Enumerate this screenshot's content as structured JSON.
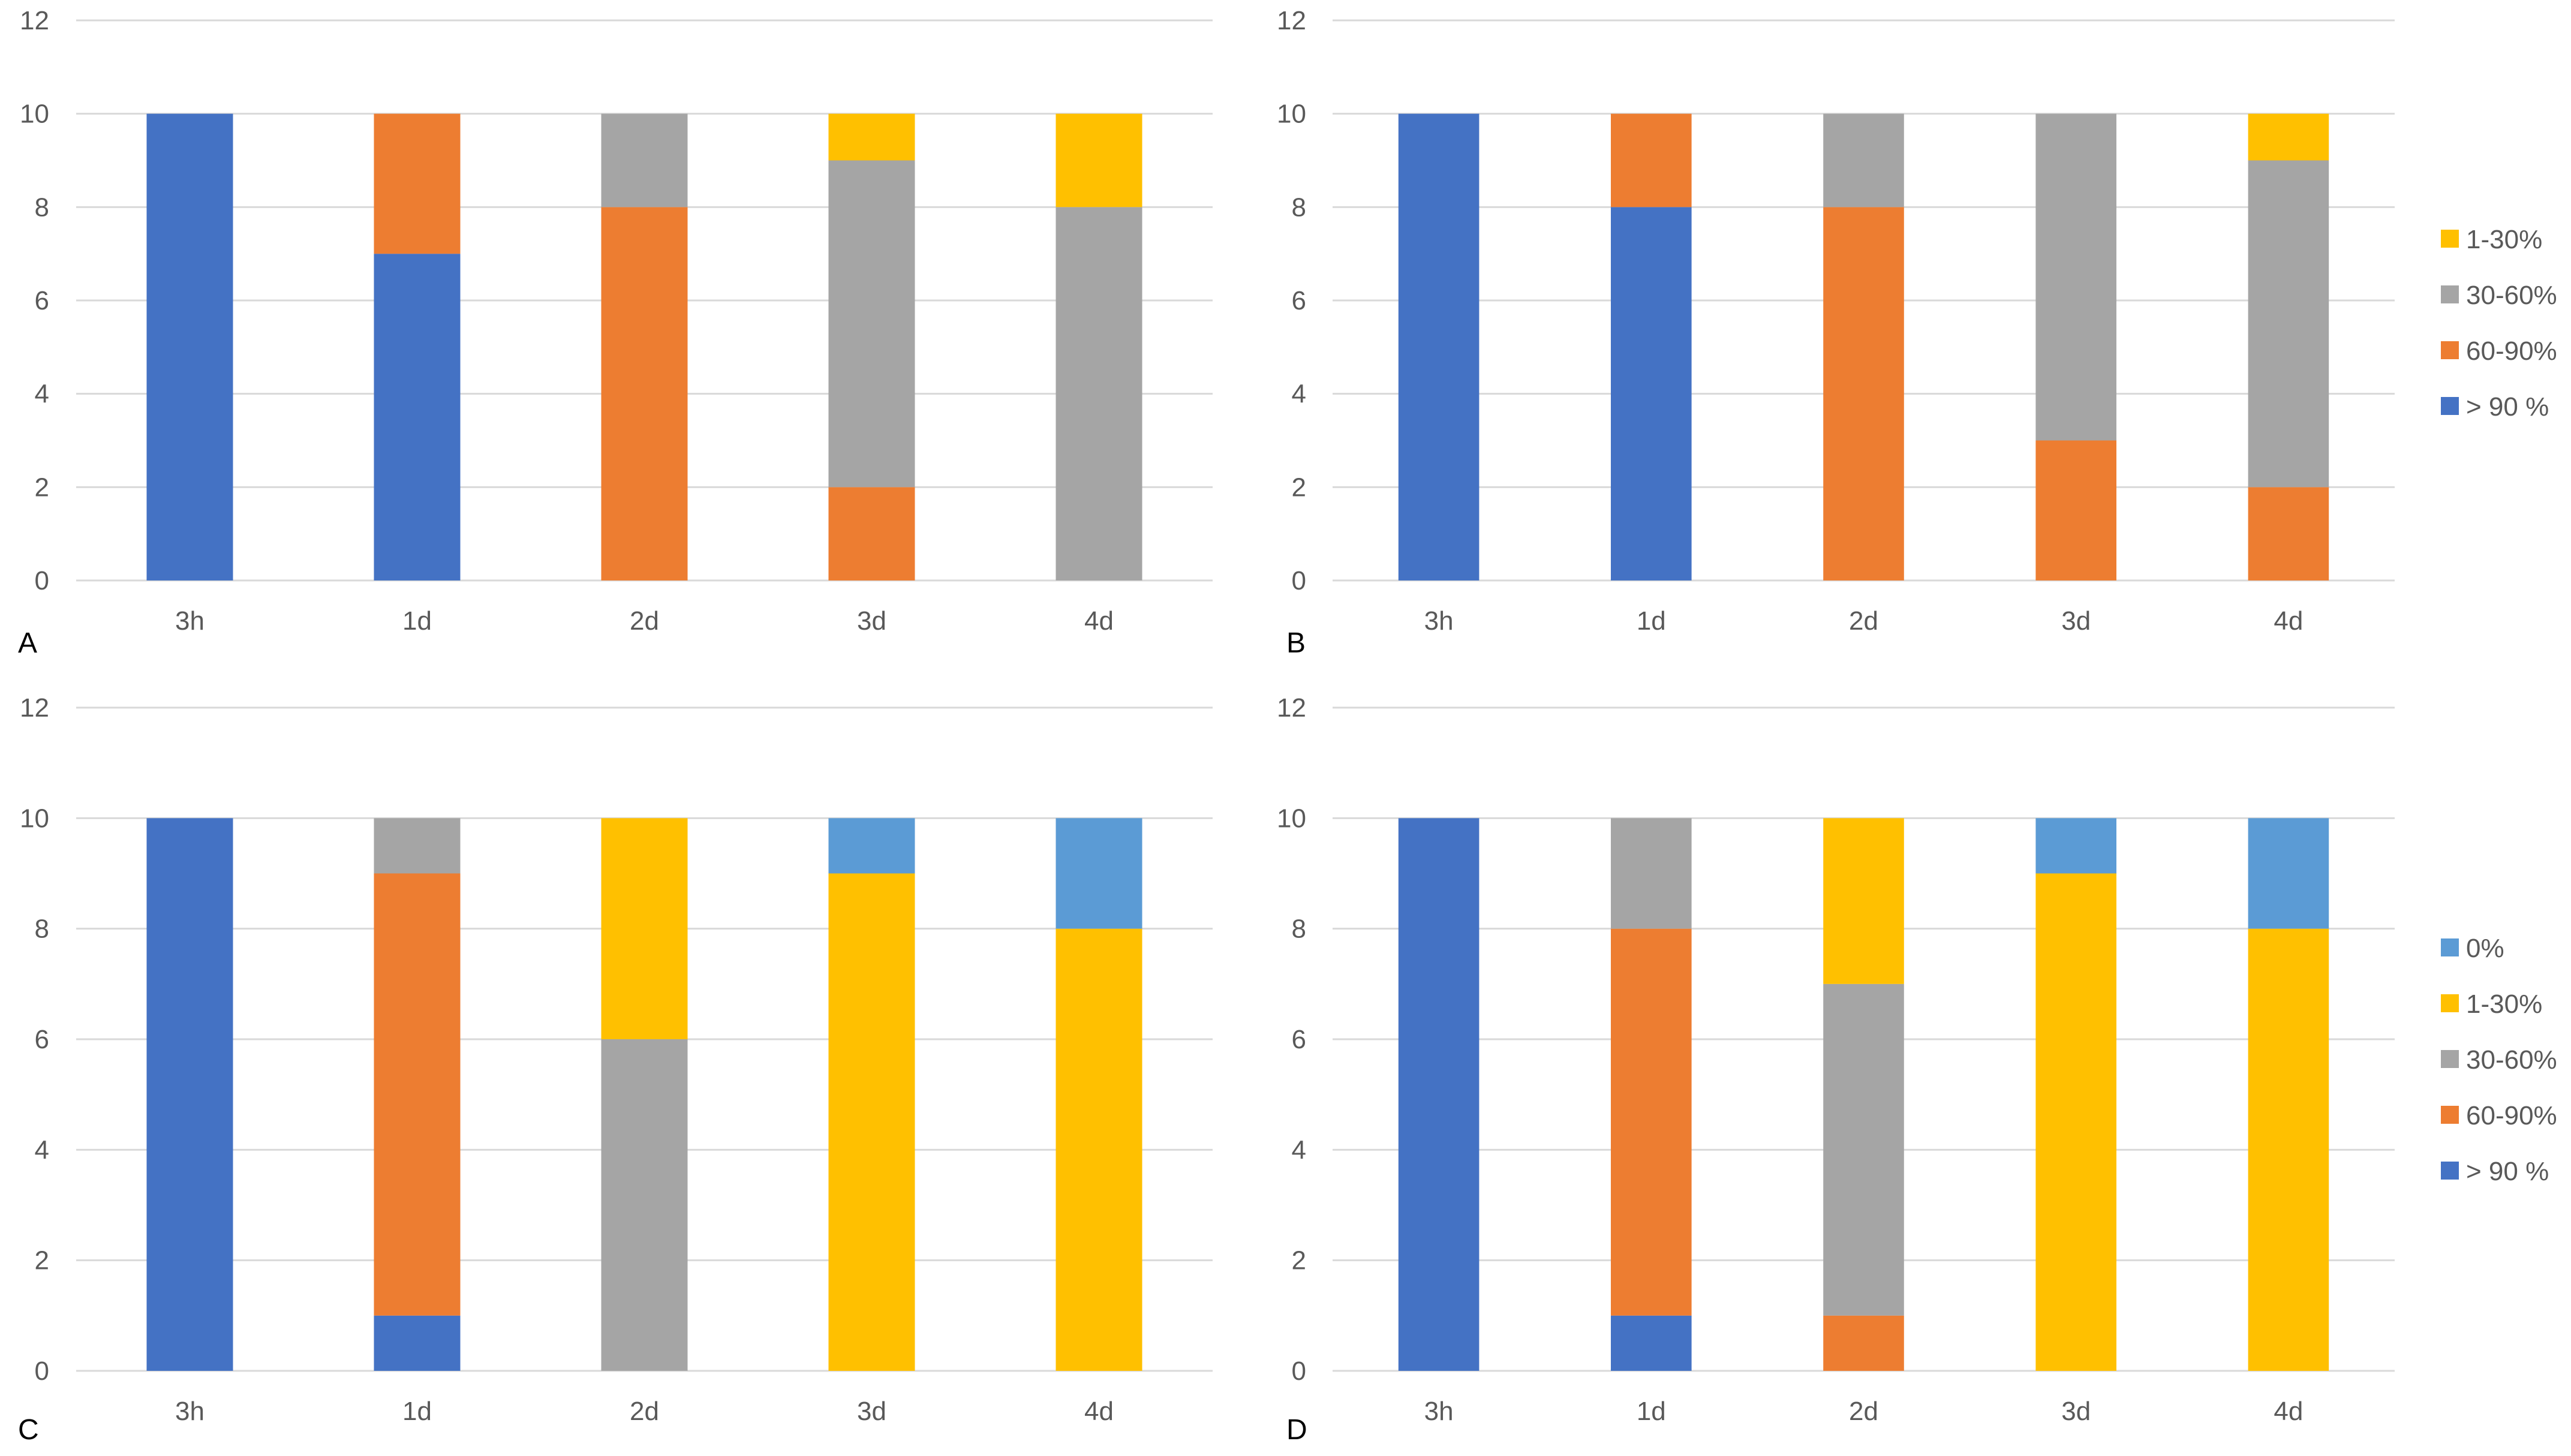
{
  "colors": {
    "0%": "#5B9BD5",
    "1-30%": "#FFC000",
    "30-60%": "#A5A5A5",
    "60-90%": "#ED7D31",
    "> 90 %": "#4472C4",
    "grid": "#D9D9D9",
    "text": "#595959"
  },
  "chart_data": [
    {
      "type": "bar",
      "stacked": true,
      "panel_label": "A",
      "categories": [
        "3h",
        "1d",
        "2d",
        "3d",
        "4d"
      ],
      "ylim": [
        0,
        12
      ],
      "yticks": [
        0,
        2,
        4,
        6,
        8,
        10,
        12
      ],
      "grid": true,
      "legend": null,
      "series": [
        {
          "name": "> 90 %",
          "values": [
            10,
            7,
            0,
            0,
            0
          ]
        },
        {
          "name": "60-90%",
          "values": [
            0,
            3,
            8,
            2,
            0
          ]
        },
        {
          "name": "30-60%",
          "values": [
            0,
            0,
            2,
            7,
            8
          ]
        },
        {
          "name": "1-30%",
          "values": [
            0,
            0,
            0,
            1,
            2
          ]
        }
      ]
    },
    {
      "type": "bar",
      "stacked": true,
      "panel_label": "B",
      "categories": [
        "3h",
        "1d",
        "2d",
        "3d",
        "4d"
      ],
      "ylim": [
        0,
        12
      ],
      "yticks": [
        0,
        2,
        4,
        6,
        8,
        10,
        12
      ],
      "grid": true,
      "legend": "right",
      "series": [
        {
          "name": "> 90 %",
          "values": [
            10,
            8,
            0,
            0,
            0
          ]
        },
        {
          "name": "60-90%",
          "values": [
            0,
            2,
            8,
            3,
            2
          ]
        },
        {
          "name": "30-60%",
          "values": [
            0,
            0,
            2,
            7,
            7
          ]
        },
        {
          "name": "1-30%",
          "values": [
            0,
            0,
            0,
            0,
            1
          ]
        }
      ]
    },
    {
      "type": "bar",
      "stacked": true,
      "panel_label": "C",
      "categories": [
        "3h",
        "1d",
        "2d",
        "3d",
        "4d"
      ],
      "ylim": [
        0,
        12
      ],
      "yticks": [
        0,
        2,
        4,
        6,
        8,
        10,
        12
      ],
      "grid": true,
      "legend": null,
      "series": [
        {
          "name": "> 90 %",
          "values": [
            10,
            1,
            0,
            0,
            0
          ]
        },
        {
          "name": "60-90%",
          "values": [
            0,
            8,
            0,
            0,
            0
          ]
        },
        {
          "name": "30-60%",
          "values": [
            0,
            1,
            6,
            0,
            0
          ]
        },
        {
          "name": "1-30%",
          "values": [
            0,
            0,
            4,
            9,
            8
          ]
        },
        {
          "name": "0%",
          "values": [
            0,
            0,
            0,
            1,
            2
          ]
        }
      ]
    },
    {
      "type": "bar",
      "stacked": true,
      "panel_label": "D",
      "categories": [
        "3h",
        "1d",
        "2d",
        "3d",
        "4d"
      ],
      "ylim": [
        0,
        12
      ],
      "yticks": [
        0,
        2,
        4,
        6,
        8,
        10,
        12
      ],
      "grid": true,
      "legend": "right",
      "series": [
        {
          "name": "> 90 %",
          "values": [
            10,
            1,
            0,
            0,
            0
          ]
        },
        {
          "name": "60-90%",
          "values": [
            0,
            7,
            1,
            0,
            0
          ]
        },
        {
          "name": "30-60%",
          "values": [
            0,
            2,
            6,
            0,
            0
          ]
        },
        {
          "name": "1-30%",
          "values": [
            0,
            0,
            3,
            9,
            8
          ]
        },
        {
          "name": "0%",
          "values": [
            0,
            0,
            0,
            1,
            2
          ]
        }
      ]
    }
  ]
}
